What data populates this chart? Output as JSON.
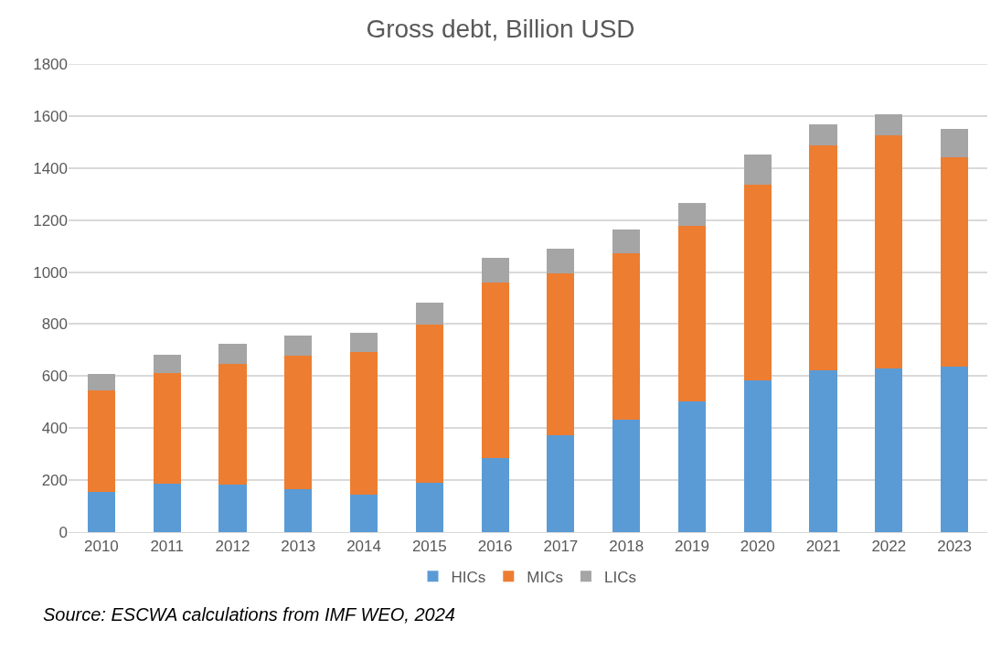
{
  "chart_data": {
    "type": "bar",
    "title": "Gross debt, Billion USD",
    "stacked": true,
    "categories": [
      "2010",
      "2011",
      "2012",
      "2013",
      "2014",
      "2015",
      "2016",
      "2017",
      "2018",
      "2019",
      "2020",
      "2021",
      "2022",
      "2023"
    ],
    "series": [
      {
        "name": "HICs",
        "color": "#5b9bd5",
        "values": [
          153,
          187,
          184,
          164,
          144,
          191,
          284,
          374,
          431,
          502,
          584,
          621,
          628,
          637
        ]
      },
      {
        "name": "MICs",
        "color": "#ed7d31",
        "values": [
          391,
          426,
          463,
          516,
          549,
          607,
          677,
          620,
          643,
          676,
          753,
          866,
          899,
          804
        ]
      },
      {
        "name": "LICs",
        "color": "#a5a5a5",
        "values": [
          63,
          70,
          76,
          77,
          74,
          85,
          95,
          95,
          90,
          88,
          116,
          82,
          79,
          110
        ]
      }
    ],
    "ylim": [
      0,
      1800
    ],
    "yticks": [
      0,
      200,
      400,
      600,
      800,
      1000,
      1200,
      1400,
      1600,
      1800
    ],
    "grid": "y",
    "legend": "bottom",
    "annotations": [
      "Source: ESCWA calculations from IMF WEO, 2024"
    ]
  }
}
